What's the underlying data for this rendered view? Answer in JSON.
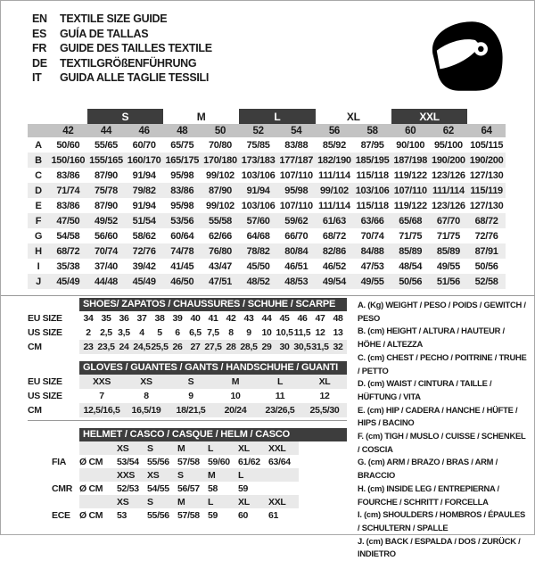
{
  "header": {
    "languages": [
      {
        "code": "EN",
        "title": "TEXTILE SIZE GUIDE"
      },
      {
        "code": "ES",
        "title": "GUÍA DE TALLAS"
      },
      {
        "code": "FR",
        "title": "GUIDE DES TAILLES TEXTILE"
      },
      {
        "code": "DE",
        "title": "TEXTILGRÖßENFÜHRUNG"
      },
      {
        "code": "IT",
        "title": "GUIDA ALLE TAGLIE TESSILI"
      }
    ],
    "helmet_icon": "full-face-racing-helmet"
  },
  "colors": {
    "band_dark": "#3d3d3d",
    "number_band": "#c3c3c3",
    "row_shade": "#ececec",
    "light_band": "#e9e9e9"
  },
  "textile_table": {
    "size_groups": [
      {
        "label": "S",
        "dark": true
      },
      {
        "label": "M",
        "dark": false
      },
      {
        "label": "L",
        "dark": true
      },
      {
        "label": "XL",
        "dark": false
      },
      {
        "label": "XXL",
        "dark": true
      }
    ],
    "columns": [
      "42",
      "44",
      "46",
      "48",
      "50",
      "52",
      "54",
      "56",
      "58",
      "60",
      "62",
      "64"
    ],
    "rows": [
      {
        "letter": "A",
        "values": [
          "50/60",
          "55/65",
          "60/70",
          "65/75",
          "70/80",
          "75/85",
          "83/88",
          "85/92",
          "87/95",
          "90/100",
          "95/100",
          "105/115"
        ]
      },
      {
        "letter": "B",
        "values": [
          "150/160",
          "155/165",
          "160/170",
          "165/175",
          "170/180",
          "173/183",
          "177/187",
          "182/190",
          "185/195",
          "187/198",
          "190/200",
          "190/200"
        ]
      },
      {
        "letter": "C",
        "values": [
          "83/86",
          "87/90",
          "91/94",
          "95/98",
          "99/102",
          "103/106",
          "107/110",
          "111/114",
          "115/118",
          "119/122",
          "123/126",
          "127/130"
        ]
      },
      {
        "letter": "D",
        "values": [
          "71/74",
          "75/78",
          "79/82",
          "83/86",
          "87/90",
          "91/94",
          "95/98",
          "99/102",
          "103/106",
          "107/110",
          "111/114",
          "115/119"
        ]
      },
      {
        "letter": "E",
        "values": [
          "83/86",
          "87/90",
          "91/94",
          "95/98",
          "99/102",
          "103/106",
          "107/110",
          "111/114",
          "115/118",
          "119/122",
          "123/126",
          "127/130"
        ]
      },
      {
        "letter": "F",
        "values": [
          "47/50",
          "49/52",
          "51/54",
          "53/56",
          "55/58",
          "57/60",
          "59/62",
          "61/63",
          "63/66",
          "65/68",
          "67/70",
          "68/72"
        ]
      },
      {
        "letter": "G",
        "values": [
          "54/58",
          "56/60",
          "58/62",
          "60/64",
          "62/66",
          "64/68",
          "66/70",
          "68/72",
          "70/74",
          "71/75",
          "71/75",
          "72/76"
        ]
      },
      {
        "letter": "H",
        "values": [
          "68/72",
          "70/74",
          "72/76",
          "74/78",
          "76/80",
          "78/82",
          "80/84",
          "82/86",
          "84/88",
          "85/89",
          "85/89",
          "87/91"
        ]
      },
      {
        "letter": "I",
        "values": [
          "35/38",
          "37/40",
          "39/42",
          "41/45",
          "43/47",
          "45/50",
          "46/51",
          "46/52",
          "47/53",
          "48/54",
          "49/55",
          "50/56"
        ]
      },
      {
        "letter": "J",
        "values": [
          "45/49",
          "44/48",
          "45/49",
          "46/50",
          "47/51",
          "48/52",
          "48/53",
          "49/54",
          "49/55",
          "50/56",
          "51/56",
          "52/58"
        ]
      }
    ]
  },
  "shoes_table": {
    "title": "SHOES/ ZAPATOS / CHAUSSURES / SCHUHE / SCARPE",
    "rows": [
      {
        "label": "EU SIZE",
        "shaded": false,
        "values": [
          "34",
          "35",
          "36",
          "37",
          "38",
          "39",
          "40",
          "41",
          "42",
          "43",
          "44",
          "45",
          "46",
          "47",
          "48"
        ]
      },
      {
        "label": "US SIZE",
        "shaded": false,
        "values": [
          "2",
          "2,5",
          "3,5",
          "4",
          "5",
          "6",
          "6,5",
          "7,5",
          "8",
          "9",
          "10",
          "10,5",
          "11,5",
          "12",
          "13"
        ]
      },
      {
        "label": "CM",
        "shaded": true,
        "values": [
          "23",
          "23,5",
          "24",
          "24,5",
          "25,5",
          "26",
          "27",
          "27,5",
          "28",
          "28,5",
          "29",
          "30",
          "30,5",
          "31,5",
          "32"
        ]
      }
    ]
  },
  "gloves_table": {
    "title": "GLOVES / GUANTES / GANTS / HANDSCHUHE / GUANTI",
    "rows": [
      {
        "label": "EU SIZE",
        "shaded": true,
        "values": [
          "XXS",
          "XS",
          "S",
          "M",
          "L",
          "XL"
        ]
      },
      {
        "label": "US SIZE",
        "shaded": false,
        "values": [
          "7",
          "8",
          "9",
          "10",
          "11",
          "12"
        ]
      },
      {
        "label": "CM",
        "shaded": true,
        "values": [
          "12,5/16,5",
          "16,5/19",
          "18/21,5",
          "20/24",
          "23/26,5",
          "25,5/30"
        ]
      }
    ]
  },
  "helmet_table": {
    "title": "HELMET / CASCO / CASQUE / HELM / CASCO",
    "unit_label": "Ø CM",
    "groups": [
      {
        "label": "FIA",
        "sizes": [
          "XS",
          "S",
          "M",
          "L",
          "XL",
          "XXL"
        ],
        "values": [
          "53/54",
          "55/56",
          "57/58",
          "59/60",
          "61/62",
          "63/64"
        ]
      },
      {
        "label": "CMR",
        "sizes": [
          "XXS",
          "XS",
          "S",
          "M",
          "L",
          ""
        ],
        "values": [
          "52/53",
          "54/55",
          "56/57",
          "58",
          "59",
          ""
        ]
      },
      {
        "label": "ECE",
        "sizes": [
          "XS",
          "S",
          "M",
          "L",
          "XL",
          "XXL"
        ],
        "values": [
          "53",
          "55/56",
          "57/58",
          "59",
          "60",
          "61"
        ]
      }
    ]
  },
  "legend": {
    "items": [
      "A. (Kg) WEIGHT / PESO / POIDS / GEWITCH / PESO",
      "B. (cm) HEIGHT / ALTURA / HAUTEUR / HÖHE / ALTEZZA",
      "C. (cm) CHEST / PECHO / POITRINE / TRUHE / PETTO",
      "D. (cm) WAIST / CINTURA / TAILLE / HÜFTUNG / VITA",
      "E. (cm) HIP / CADERA / HANCHE / HÜFTE / HIPS /  BACINO",
      "F. (cm) TIGH / MUSLO / CUISSE / SCHENKEL / COSCIA",
      "G. (cm) ARM  / BRAZO / BRAS / ARM / BRACCIO",
      "H. (cm) INSIDE LEG / ENTREPIERNA / FOURCHE / SCHRITT / FORCELLA",
      "I.  (cm) SHOULDERS / HOMBROS / ÉPAULES / SCHULTERN / SPALLE",
      "J. (cm) BACK / ESPALDA / DOS / ZURÜCK / INDIETRO"
    ]
  }
}
